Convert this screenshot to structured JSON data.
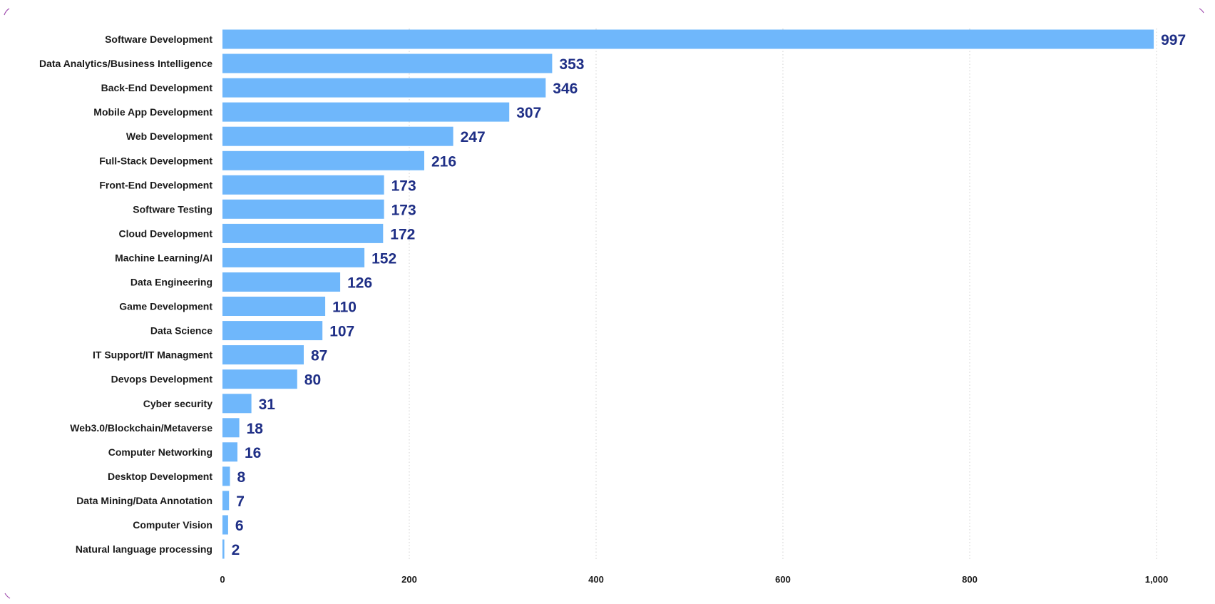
{
  "chart_data": {
    "type": "bar",
    "orientation": "horizontal",
    "categories": [
      "Software Development",
      "Data Analytics/Business Intelligence",
      "Back-End Development",
      "Mobile App Development",
      "Web Development",
      "Full-Stack Development",
      "Front-End Development",
      "Software Testing",
      "Cloud Development",
      "Machine Learning/AI",
      "Data Engineering",
      "Game Development",
      "Data Science",
      "IT Support/IT Managment",
      "Devops Development",
      "Cyber security",
      "Web3.0/Blockchain/Metaverse",
      "Computer Networking",
      "Desktop Development",
      "Data Mining/Data Annotation",
      "Computer Vision",
      "Natural language processing"
    ],
    "values": [
      997,
      353,
      346,
      307,
      247,
      216,
      173,
      173,
      172,
      152,
      126,
      110,
      107,
      87,
      80,
      31,
      18,
      16,
      8,
      7,
      6,
      2
    ],
    "xlim": [
      0,
      1000
    ],
    "xticks": [
      0,
      200,
      400,
      600,
      800,
      1000
    ],
    "xtick_labels": [
      "0",
      "200",
      "400",
      "600",
      "800",
      "1,000"
    ],
    "grid": "vertical dotted",
    "data_labels": true,
    "title": "",
    "xlabel": "",
    "ylabel": "",
    "colors": {
      "bar": "#6fb7fb",
      "value_label": "#1f2f86",
      "category_label": "#1a1a1a",
      "gridline": "#d0d0d0"
    }
  }
}
